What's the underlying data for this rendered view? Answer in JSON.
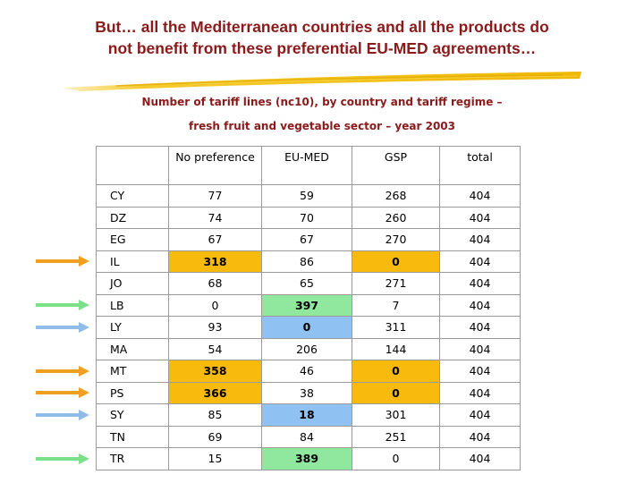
{
  "title": {
    "line1": "But… all the Mediterranean countries and all the products do",
    "line2": "not benefit from these preferential EU-MED agreements…"
  },
  "subtitle": {
    "line1": "Number of tariff lines (nc10), by country and tariff regime –",
    "line2": "fresh fruit and vegetable sector – year 2003"
  },
  "colors": {
    "title": "#8b1a1a",
    "brush": "#f5c518",
    "orange": "#f8ba0c",
    "green": "#8fe89e",
    "blue": "#8fc1f2",
    "arrow_orange": "#f0a020",
    "arrow_green": "#7be08a",
    "arrow_blue": "#8fbde8"
  },
  "table": {
    "headers": [
      "",
      "No preference",
      "EU-MED",
      "GSP",
      "total"
    ],
    "rows": [
      {
        "code": "CY",
        "values": [
          "77",
          "59",
          "268",
          "404"
        ],
        "arrow": null,
        "highlight": []
      },
      {
        "code": "DZ",
        "values": [
          "74",
          "70",
          "260",
          "404"
        ],
        "arrow": null,
        "highlight": []
      },
      {
        "code": "EG",
        "values": [
          "67",
          "67",
          "270",
          "404"
        ],
        "arrow": null,
        "highlight": []
      },
      {
        "code": "IL",
        "values": [
          "318",
          "86",
          "0",
          "404"
        ],
        "arrow": "orange",
        "highlight": [
          {
            "col": 0,
            "color": "orange"
          },
          {
            "col": 2,
            "color": "orange"
          }
        ]
      },
      {
        "code": "JO",
        "values": [
          "68",
          "65",
          "271",
          "404"
        ],
        "arrow": null,
        "highlight": []
      },
      {
        "code": "LB",
        "values": [
          "0",
          "397",
          "7",
          "404"
        ],
        "arrow": "green",
        "highlight": [
          {
            "col": 1,
            "color": "green"
          }
        ]
      },
      {
        "code": "LY",
        "values": [
          "93",
          "0",
          "311",
          "404"
        ],
        "arrow": "blue",
        "highlight": [
          {
            "col": 1,
            "color": "blue"
          }
        ]
      },
      {
        "code": "MA",
        "values": [
          "54",
          "206",
          "144",
          "404"
        ],
        "arrow": null,
        "highlight": []
      },
      {
        "code": "MT",
        "values": [
          "358",
          "46",
          "0",
          "404"
        ],
        "arrow": "orange",
        "highlight": [
          {
            "col": 0,
            "color": "orange"
          },
          {
            "col": 2,
            "color": "orange"
          }
        ]
      },
      {
        "code": "PS",
        "values": [
          "366",
          "38",
          "0",
          "404"
        ],
        "arrow": "orange",
        "highlight": [
          {
            "col": 0,
            "color": "orange"
          },
          {
            "col": 2,
            "color": "orange"
          }
        ]
      },
      {
        "code": "SY",
        "values": [
          "85",
          "18",
          "301",
          "404"
        ],
        "arrow": "blue",
        "highlight": [
          {
            "col": 1,
            "color": "blue"
          }
        ]
      },
      {
        "code": "TN",
        "values": [
          "69",
          "84",
          "251",
          "404"
        ],
        "arrow": null,
        "highlight": []
      },
      {
        "code": "TR",
        "values": [
          "15",
          "389",
          "0",
          "404"
        ],
        "arrow": "green",
        "highlight": [
          {
            "col": 1,
            "color": "green"
          }
        ]
      }
    ]
  }
}
